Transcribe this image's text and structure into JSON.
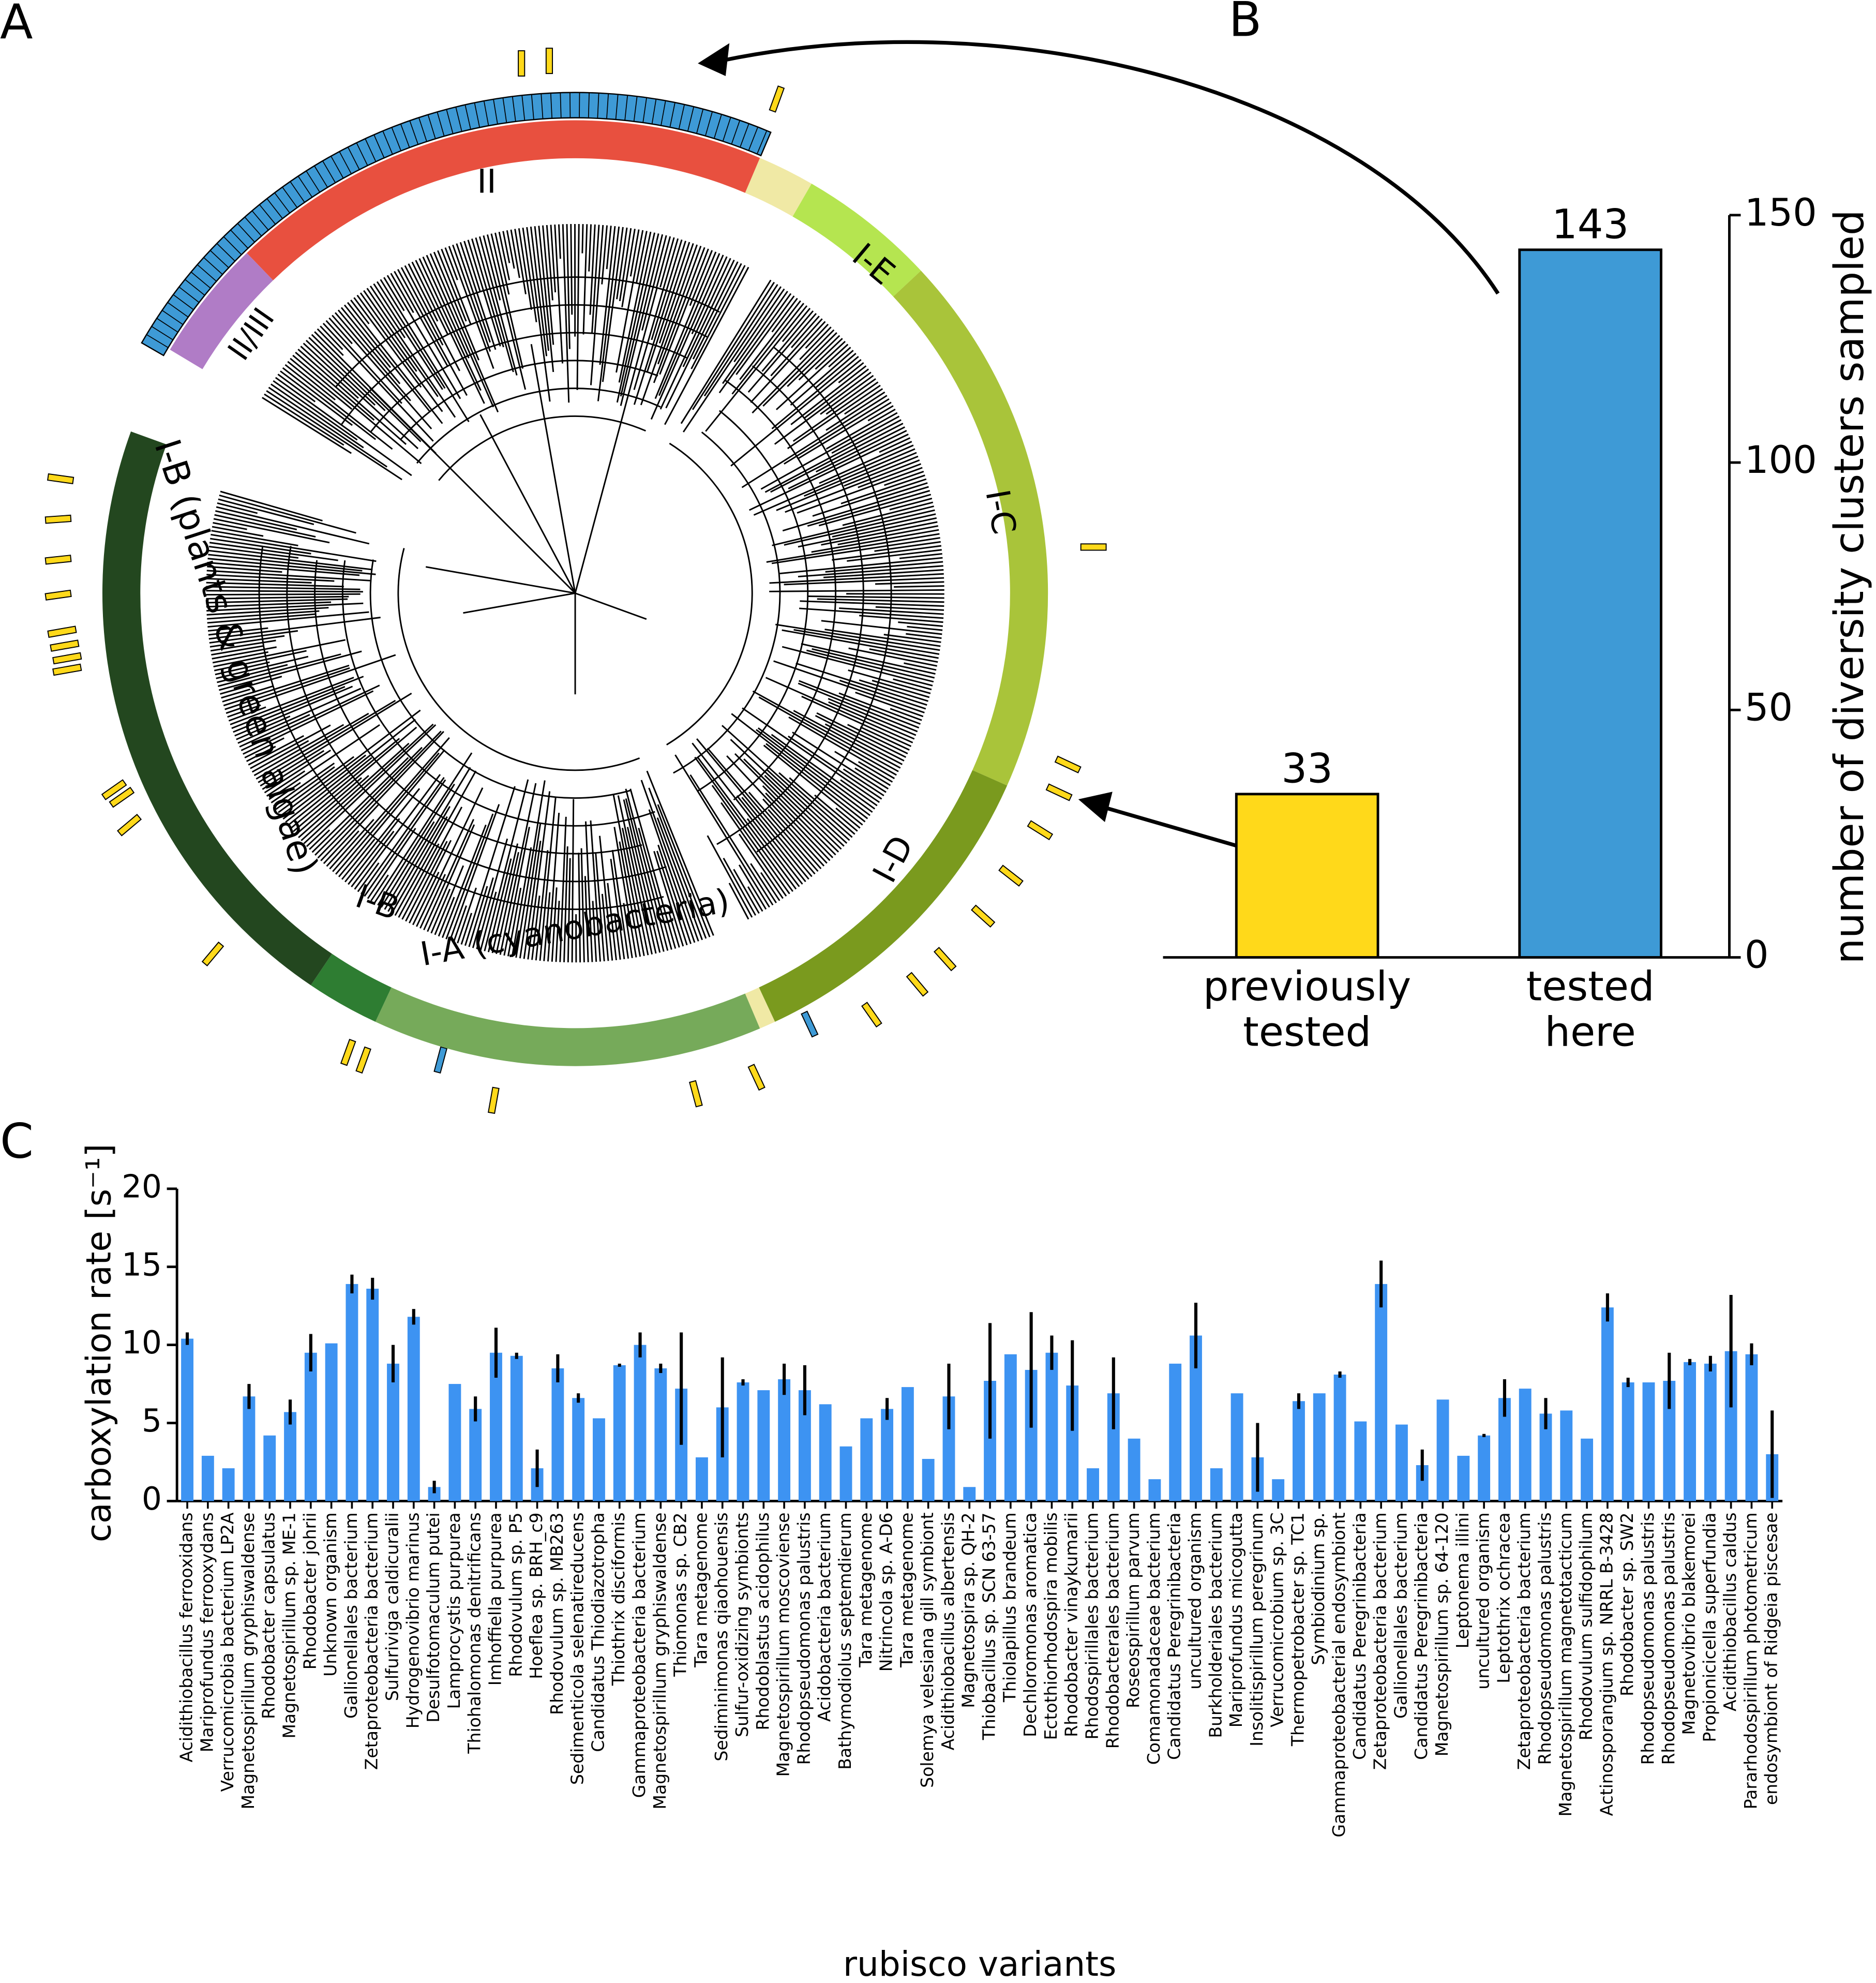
{
  "chart_data": [
    {
      "type": "radial-tree",
      "panel": "A",
      "clades": [
        {
          "label": "II",
          "color": "#e8503f"
        },
        {
          "label": "II/III",
          "color": "#b07cc6"
        },
        {
          "label": "I-E",
          "color": "#b5e550"
        },
        {
          "label": "I-C",
          "color": "#a9c43a"
        },
        {
          "label": "I-D",
          "color": "#7a9a1e"
        },
        {
          "label": "I-A (cyanobacteria)",
          "color": "#76aa5a"
        },
        {
          "label": "I-B",
          "color": "#2e7d32"
        },
        {
          "label": "I-B (plants & green algae)",
          "color": "#23471f"
        }
      ]
    },
    {
      "type": "bar",
      "panel": "B",
      "categories": [
        "previously tested",
        "tested here"
      ],
      "values": [
        33,
        143
      ],
      "colors": [
        "#ffd91a",
        "#3e9ad6"
      ],
      "ylabel": "number of diversity clusters sampled",
      "ylim": [
        0,
        150
      ],
      "yticks": [
        0,
        50,
        100,
        150
      ]
    },
    {
      "type": "bar",
      "panel": "C",
      "color": "#3d93f2",
      "ylabel": "carboxylation rate [s⁻¹]",
      "xlabel": "rubisco variants",
      "ylim": [
        0,
        20
      ],
      "yticks": [
        0,
        5,
        10,
        15,
        20
      ],
      "categories": [
        "Acidithiobacillus ferrooxidans",
        "Mariprofundus ferrooxydans",
        "Verrucomicrobia bacterium LP2A",
        "Magnetospirillum gryphiswaldense",
        "Rhodobacter capsulatus",
        "Magnetospirillum sp. ME-1",
        "Rhodobacter johrii",
        "Unknown organism",
        "Gallionellales bacterium",
        "Zetaproteobacteria bacterium",
        "Sulfuriviga caldicuralii",
        "Hydrogenovibrio marinus",
        "Desulfotomaculum putei",
        "Lamprocystis purpurea",
        "Thiohalomonas denitrificans",
        "Imhoffiella purpurea",
        "Rhodovulum sp. P5",
        "Hoeflea sp. BRH_c9",
        "Rhodovulum sp. MB263",
        "Sedimenticola selenatireducens",
        "Candidatus Thiodiazotropha",
        "Thiothrix disciformis",
        "Gammaproteobacteria bacterium",
        "Magnetospirillum gryphiswaldense",
        "Thiomonas sp. CB2",
        "Tara metagenome",
        "Sediminimonas qiaohouensis",
        "Sulfur-oxidizing symbionts",
        "Rhodoblastus acidophilus",
        "Magnetospirillum moscoviense",
        "Rhodopseudomonas palustris",
        "Acidobacteria bacterium",
        "Bathymodiolus septemdierum",
        "Tara metagenome",
        "Nitrincola sp. A-D6",
        "Tara metagenome",
        "Solemya velesiana gill symbiont",
        "Acidithiobacillus albertensis",
        "Magnetospira sp. QH-2",
        "Thiobacillus sp. SCN 63-57",
        "Thiolapillus brandeum",
        "Dechloromonas aromatica",
        "Ectothiorhodospira mobilis",
        "Rhodobacter vinaykumarii",
        "Rhodospirillales bacterium",
        "Rhodobacterales bacterium",
        "Roseospirillum parvum",
        "Comamonadaceae bacterium",
        "Candidatus Peregrinibacteria",
        "uncultured organism",
        "Burkholderiales bacterium",
        "Mariprofundus micogutta",
        "Insolitispirillum peregrinum",
        "Verrucomicrobium sp. 3C",
        "Thermopetrobacter sp. TC1",
        "Symbiodinium sp.",
        "Gammaproteobacterial endosymbiont",
        "Candidatus Peregrinibacteria",
        "Zetaproteobacteria bacterium",
        "Gallionellales bacterium",
        "Candidatus Peregrinibacteria",
        "Magnetospirillum sp. 64-120",
        "Leptonema illini",
        "uncultured organism",
        "Leptothrix ochracea",
        "Zetaproteobacteria bacterium",
        "Rhodopseudomonas palustris",
        "Magnetospirillum magnetotacticum",
        "Rhodovulum sulfidophilum",
        "Actinosporangium sp. NRRL B-3428",
        "Rhodobacter sp. SW2",
        "Rhodopseudomonas palustris",
        "Rhodopseudomonas palustris",
        "Magnetovibrio blakemorei",
        "Propionicicella superfundia",
        "Acidithiobacillus caldus",
        "Pararhodospirillum photometricum",
        "endosymbiont of Ridgeia piscesae"
      ],
      "values": [
        10.4,
        2.9,
        2.1,
        6.7,
        4.2,
        5.7,
        9.5,
        10.1,
        13.9,
        13.6,
        8.8,
        11.8,
        0.9,
        7.5,
        5.9,
        9.5,
        9.3,
        2.1,
        8.5,
        6.6,
        5.3,
        8.7,
        10.0,
        8.5,
        7.2,
        2.8,
        6.0,
        7.6,
        7.1,
        7.8,
        7.1,
        6.2,
        3.5,
        5.3,
        5.9,
        7.3,
        2.7,
        6.7,
        0.9,
        7.7,
        9.4,
        8.4,
        9.5,
        7.4,
        2.1,
        6.9,
        4.0,
        1.4,
        8.8,
        10.6,
        2.1,
        6.9,
        2.8,
        1.4,
        6.4,
        6.9,
        8.1,
        5.1,
        13.9,
        4.9,
        2.3,
        6.5,
        2.9,
        4.2,
        6.6,
        7.2,
        5.6,
        5.8,
        4.0,
        12.4,
        7.6,
        7.6,
        7.7,
        8.9,
        8.8,
        9.6,
        9.4,
        3.0
      ],
      "errors": [
        0.4,
        null,
        null,
        0.8,
        null,
        0.8,
        1.2,
        null,
        0.6,
        0.7,
        1.2,
        0.5,
        0.4,
        null,
        0.8,
        1.6,
        0.2,
        1.2,
        0.9,
        0.3,
        null,
        0.1,
        0.8,
        0.3,
        3.6,
        null,
        3.2,
        0.2,
        null,
        1.0,
        1.6,
        null,
        null,
        null,
        0.7,
        null,
        null,
        2.1,
        null,
        3.7,
        null,
        3.7,
        1.1,
        2.9,
        null,
        2.3,
        null,
        null,
        null,
        2.1,
        null,
        null,
        2.2,
        null,
        0.5,
        null,
        0.2,
        null,
        1.5,
        null,
        1.0,
        null,
        null,
        0.1,
        1.2,
        null,
        1.0,
        null,
        null,
        0.9,
        0.3,
        null,
        1.8,
        0.2,
        0.5,
        3.6,
        0.7,
        2.8
      ]
    }
  ]
}
